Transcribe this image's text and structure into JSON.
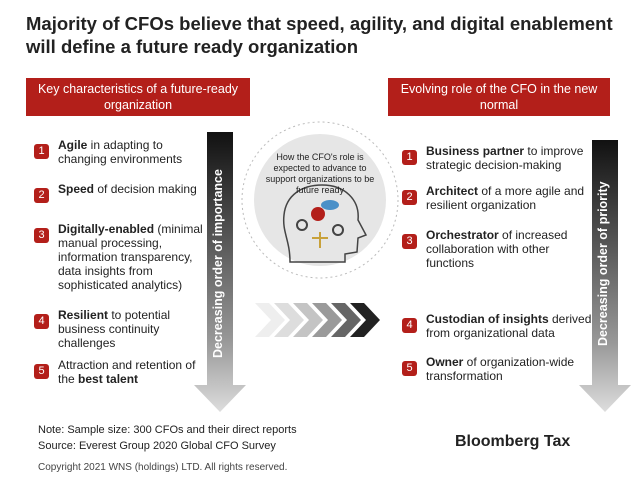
{
  "title": "Majority of CFOs believe that speed, agility, and digital enablement will define a future ready organization",
  "left_panel": {
    "heading": "Key characteristics of a future-ready organization",
    "arrow_label": "Decreasing order of importance",
    "items": [
      {
        "number": "1",
        "parts": [
          {
            "text": "Agile",
            "bold": true
          },
          {
            "text": " in adapting to changing environments"
          }
        ]
      },
      {
        "number": "2",
        "parts": [
          {
            "text": "Speed",
            "bold": true
          },
          {
            "text": " of decision making"
          }
        ]
      },
      {
        "number": "3",
        "parts": [
          {
            "text": "Digitally-enabled",
            "bold": true
          },
          {
            "text": " (minimal manual processing, information transparency, data insights from sophisticated analytics)"
          }
        ]
      },
      {
        "number": "4",
        "parts": [
          {
            "text": "Resilient",
            "bold": true
          },
          {
            "text": " to potential business continuity challenges"
          }
        ]
      },
      {
        "number": "5",
        "parts": [
          {
            "text": "Attraction and retention of the "
          },
          {
            "text": "best talent",
            "bold": true
          }
        ]
      }
    ]
  },
  "center": {
    "caption": "How the CFO's role is expected to advance to support organizations to be future ready"
  },
  "right_panel": {
    "heading": "Evolving role of the CFO in the new normal",
    "arrow_label": "Decreasing order of priority",
    "items": [
      {
        "number": "1",
        "parts": [
          {
            "text": "Business partner",
            "bold": true
          },
          {
            "text": " to improve strategic decision-making"
          }
        ]
      },
      {
        "number": "2",
        "parts": [
          {
            "text": "Architect",
            "bold": true
          },
          {
            "text": " of a more agile and resilient organization"
          }
        ]
      },
      {
        "number": "3",
        "parts": [
          {
            "text": "Orchestrator",
            "bold": true
          },
          {
            "text": " of increased collaboration with other functions"
          }
        ]
      },
      {
        "number": "4",
        "parts": [
          {
            "text": "Custodian of insights",
            "bold": true
          },
          {
            "text": " derived from organizational data"
          }
        ]
      },
      {
        "number": "5",
        "parts": [
          {
            "text": "Owner",
            "bold": true
          },
          {
            "text": " of organization-wide transformation"
          }
        ]
      }
    ]
  },
  "footer": {
    "note": "Note: Sample size: 300 CFOs and their direct reports",
    "source": "Source: Everest Group 2020 Global CFO Survey",
    "copyright": "Copyright 2021 WNS (holdings) LTD. All rights reserved.",
    "brand": "Bloomberg Tax"
  }
}
